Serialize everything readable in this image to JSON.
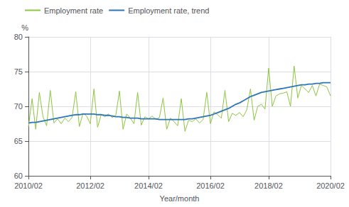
{
  "chart_data": {
    "type": "line",
    "xlabel": "Year/month",
    "ylabel": "%",
    "categories": [
      "2010/02",
      null,
      null,
      null,
      null,
      null,
      null,
      null,
      null,
      null,
      null,
      null,
      null,
      null,
      null,
      null,
      null,
      "2012/02",
      null,
      null,
      null,
      null,
      null,
      null,
      null,
      null,
      null,
      null,
      null,
      null,
      null,
      null,
      null,
      "2014/02",
      null,
      null,
      null,
      null,
      null,
      null,
      null,
      null,
      null,
      null,
      null,
      null,
      null,
      null,
      null,
      null,
      "2016/02",
      null,
      null,
      null,
      null,
      null,
      null,
      null,
      null,
      null,
      null,
      null,
      null,
      null,
      null,
      null,
      "2018/02",
      null,
      null,
      null,
      null,
      null,
      null,
      null,
      null,
      null,
      null,
      null,
      null,
      null,
      null,
      null,
      null,
      "2020/02"
    ],
    "series": [
      {
        "name": "Employment rate",
        "color": "#8dc63f",
        "values": [
          67.0,
          71.1,
          66.7,
          72.0,
          68.5,
          67.2,
          72.3,
          67.6,
          68.2,
          67.5,
          68.3,
          67.8,
          68.4,
          72.1,
          67.1,
          69.0,
          68.6,
          67.5,
          72.5,
          67.0,
          68.8,
          68.5,
          68.9,
          68.4,
          68.7,
          72.2,
          66.7,
          68.9,
          68.3,
          67.5,
          72.0,
          67.3,
          68.5,
          68.2,
          68.6,
          68.1,
          68.4,
          71.2,
          66.7,
          68.3,
          67.8,
          67.2,
          71.1,
          66.4,
          68.0,
          67.8,
          68.2,
          67.6,
          68.1,
          72.0,
          67.5,
          69.2,
          68.8,
          68.3,
          72.3,
          67.8,
          69.0,
          68.7,
          69.1,
          68.5,
          69.5,
          72.5,
          68.0,
          70.0,
          70.3,
          69.6,
          75.5,
          70.0,
          71.5,
          71.8,
          71.9,
          72.1,
          70.0,
          75.8,
          71.2,
          73.0,
          72.5,
          72.0,
          73.0,
          71.5,
          73.2,
          73.0,
          72.8,
          71.5
        ]
      },
      {
        "name": "Employment rate, trend",
        "color": "#2e75b6",
        "values": [
          67.6,
          67.7,
          67.7,
          67.8,
          67.9,
          68.0,
          68.1,
          68.2,
          68.3,
          68.4,
          68.5,
          68.6,
          68.7,
          68.8,
          68.8,
          68.9,
          68.9,
          68.9,
          68.9,
          68.8,
          68.8,
          68.7,
          68.7,
          68.6,
          68.5,
          68.5,
          68.4,
          68.4,
          68.3,
          68.3,
          68.3,
          68.2,
          68.2,
          68.2,
          68.2,
          68.2,
          68.1,
          68.1,
          68.1,
          68.1,
          68.1,
          68.1,
          68.1,
          68.1,
          68.2,
          68.2,
          68.3,
          68.4,
          68.5,
          68.6,
          68.7,
          68.9,
          69.1,
          69.3,
          69.5,
          69.7,
          70.0,
          70.3,
          70.5,
          70.8,
          71.1,
          71.4,
          71.6,
          71.8,
          72.0,
          72.1,
          72.2,
          72.3,
          72.4,
          72.5,
          72.6,
          72.7,
          72.8,
          72.9,
          73.0,
          73.1,
          73.1,
          73.2,
          73.2,
          73.3,
          73.3,
          73.4,
          73.4,
          73.4
        ]
      }
    ],
    "ylim": [
      60,
      80
    ],
    "yticks": [
      60,
      65,
      70,
      75,
      80
    ],
    "grid": true,
    "legend": "upper left"
  }
}
